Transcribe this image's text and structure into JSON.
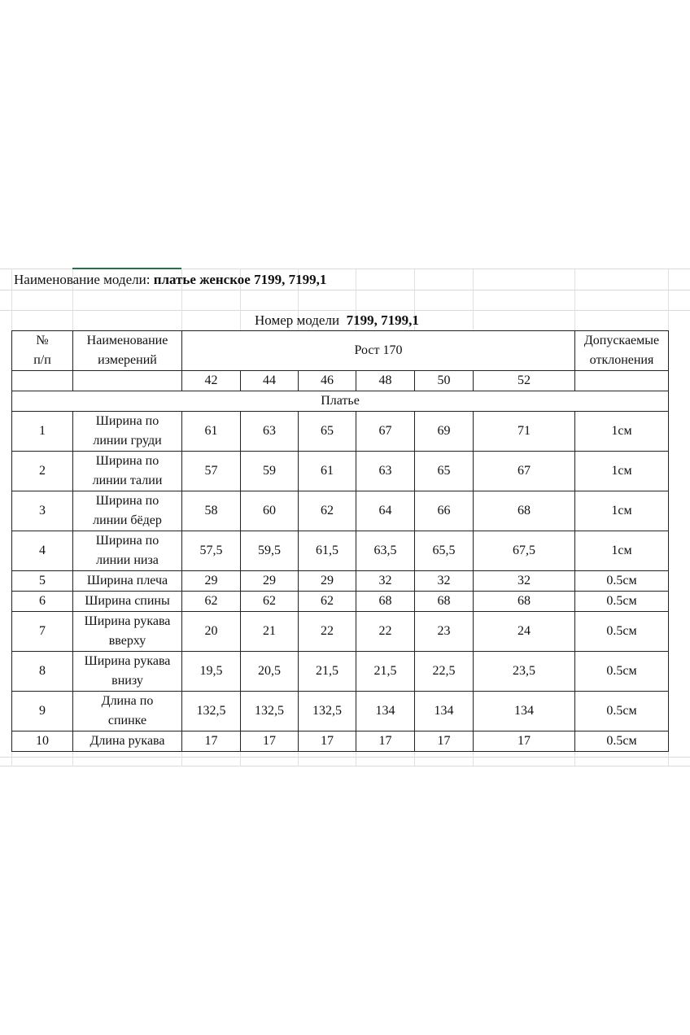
{
  "title": {
    "label": "Наименование модели:",
    "value": "платье женское 7199, 7199,1"
  },
  "model_number": {
    "label": "Номер модели",
    "value": "7199, 7199,1"
  },
  "table": {
    "col_num": "№\nп/п",
    "col_name": "Наименование\nизмерений",
    "col_height": "Рост 170",
    "col_tolerance": "Допускаемые\nотклонения",
    "sizes": [
      "42",
      "44",
      "46",
      "48",
      "50",
      "52"
    ],
    "section": "Платье",
    "rows": [
      {
        "n": "1",
        "name": "Ширина по\nлинии груди",
        "values": [
          "61",
          "63",
          "65",
          "67",
          "69",
          "71"
        ],
        "tol": "1см"
      },
      {
        "n": "2",
        "name": "Ширина по\nлинии талии",
        "values": [
          "57",
          "59",
          "61",
          "63",
          "65",
          "67"
        ],
        "tol": "1см"
      },
      {
        "n": "3",
        "name": "Ширина по\nлинии бёдер",
        "values": [
          "58",
          "60",
          "62",
          "64",
          "66",
          "68"
        ],
        "tol": "1см"
      },
      {
        "n": "4",
        "name": "Ширина по\nлинии низа",
        "values": [
          "57,5",
          "59,5",
          "61,5",
          "63,5",
          "65,5",
          "67,5"
        ],
        "tol": "1см"
      },
      {
        "n": "5",
        "name": "Ширина плеча",
        "values": [
          "29",
          "29",
          "29",
          "32",
          "32",
          "32"
        ],
        "tol": "0.5см"
      },
      {
        "n": "6",
        "name": "Ширина спины",
        "values": [
          "62",
          "62",
          "62",
          "68",
          "68",
          "68"
        ],
        "tol": "0.5см"
      },
      {
        "n": "7",
        "name": "Ширина рукава\nвверху",
        "values": [
          "20",
          "21",
          "22",
          "22",
          "23",
          "24"
        ],
        "tol": "0.5см"
      },
      {
        "n": "8",
        "name": "Ширина рукава\nвнизу",
        "values": [
          "19,5",
          "20,5",
          "21,5",
          "21,5",
          "22,5",
          "23,5"
        ],
        "tol": "0.5см"
      },
      {
        "n": "9",
        "name": "Длина по\nспинке",
        "values": [
          "132,5",
          "132,5",
          "132,5",
          "134",
          "134",
          "134"
        ],
        "tol": "0.5см"
      },
      {
        "n": "10",
        "name": "Длина рукава",
        "values": [
          "17",
          "17",
          "17",
          "17",
          "17",
          "17"
        ],
        "tol": "0.5см"
      }
    ]
  }
}
